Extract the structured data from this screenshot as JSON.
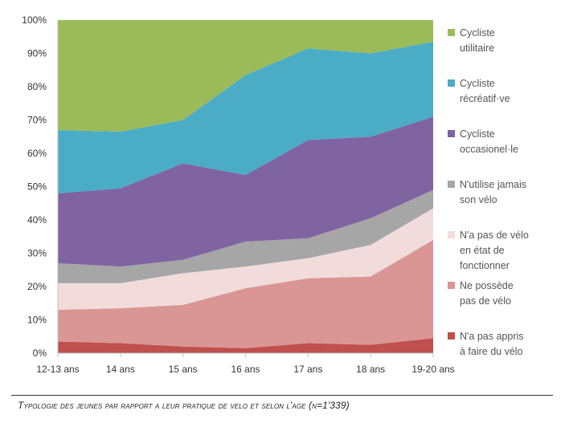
{
  "chart_data": {
    "type": "area",
    "stacked": true,
    "normalized": true,
    "title": "",
    "xlabel": "",
    "ylabel": "",
    "ylim": [
      0,
      100
    ],
    "yticks": [
      "0%",
      "10%",
      "20%",
      "30%",
      "40%",
      "50%",
      "60%",
      "70%",
      "80%",
      "90%",
      "100%"
    ],
    "grid": false,
    "legend_position": "right",
    "categories": [
      "12-13 ans",
      "14 ans",
      "15 ans",
      "16 ans",
      "17 ans",
      "18 ans",
      "19-20 ans"
    ],
    "series": [
      {
        "name": "N'a pas appris à faire du vélo",
        "label_lines": [
          "N'a pas appris",
          "à faire du vélo"
        ],
        "color": "#c0504d",
        "values": [
          3.5,
          3,
          2,
          1.5,
          3,
          2.5,
          4.5
        ]
      },
      {
        "name": "Ne possède pas de vélo",
        "label_lines": [
          "Ne possède",
          "pas de vélo"
        ],
        "color": "#da9694",
        "values": [
          9.5,
          10.5,
          12.5,
          18,
          19.5,
          20.5,
          29.5
        ]
      },
      {
        "name": "N'a pas de vélo en état de fonctionner",
        "label_lines": [
          "N'a pas de vélo",
          "en état de",
          "fonctionner"
        ],
        "color": "#f2dcdb",
        "values": [
          8,
          7.5,
          9.5,
          6.5,
          6,
          9.5,
          9.5
        ]
      },
      {
        "name": "N'utilise jamais son vélo",
        "label_lines": [
          "N'utilise jamais",
          "son vélo"
        ],
        "color": "#a6a6a6",
        "values": [
          6,
          5,
          4,
          7.5,
          6,
          8,
          5.5
        ]
      },
      {
        "name": "Cycliste occasionel·le",
        "label_lines": [
          "Cycliste",
          "occasionel·le"
        ],
        "color": "#8064a2",
        "values": [
          21,
          23.5,
          29,
          20,
          29.5,
          24.5,
          22
        ]
      },
      {
        "name": "Cycliste récréatif·ve",
        "label_lines": [
          "Cycliste",
          "récréatif·ve"
        ],
        "color": "#4bacc6",
        "values": [
          19,
          17,
          13,
          30,
          27.5,
          25,
          22.5
        ]
      },
      {
        "name": "Cycliste utilitaire",
        "label_lines": [
          "Cycliste",
          "utilitaire"
        ],
        "color": "#9bbb59",
        "values": [
          33,
          33.5,
          30,
          16.5,
          8.5,
          10,
          6.5
        ]
      }
    ]
  },
  "caption": "Typologie des jeunes par rapport a leur pratique de velo et selon l'age (n=1'339)"
}
